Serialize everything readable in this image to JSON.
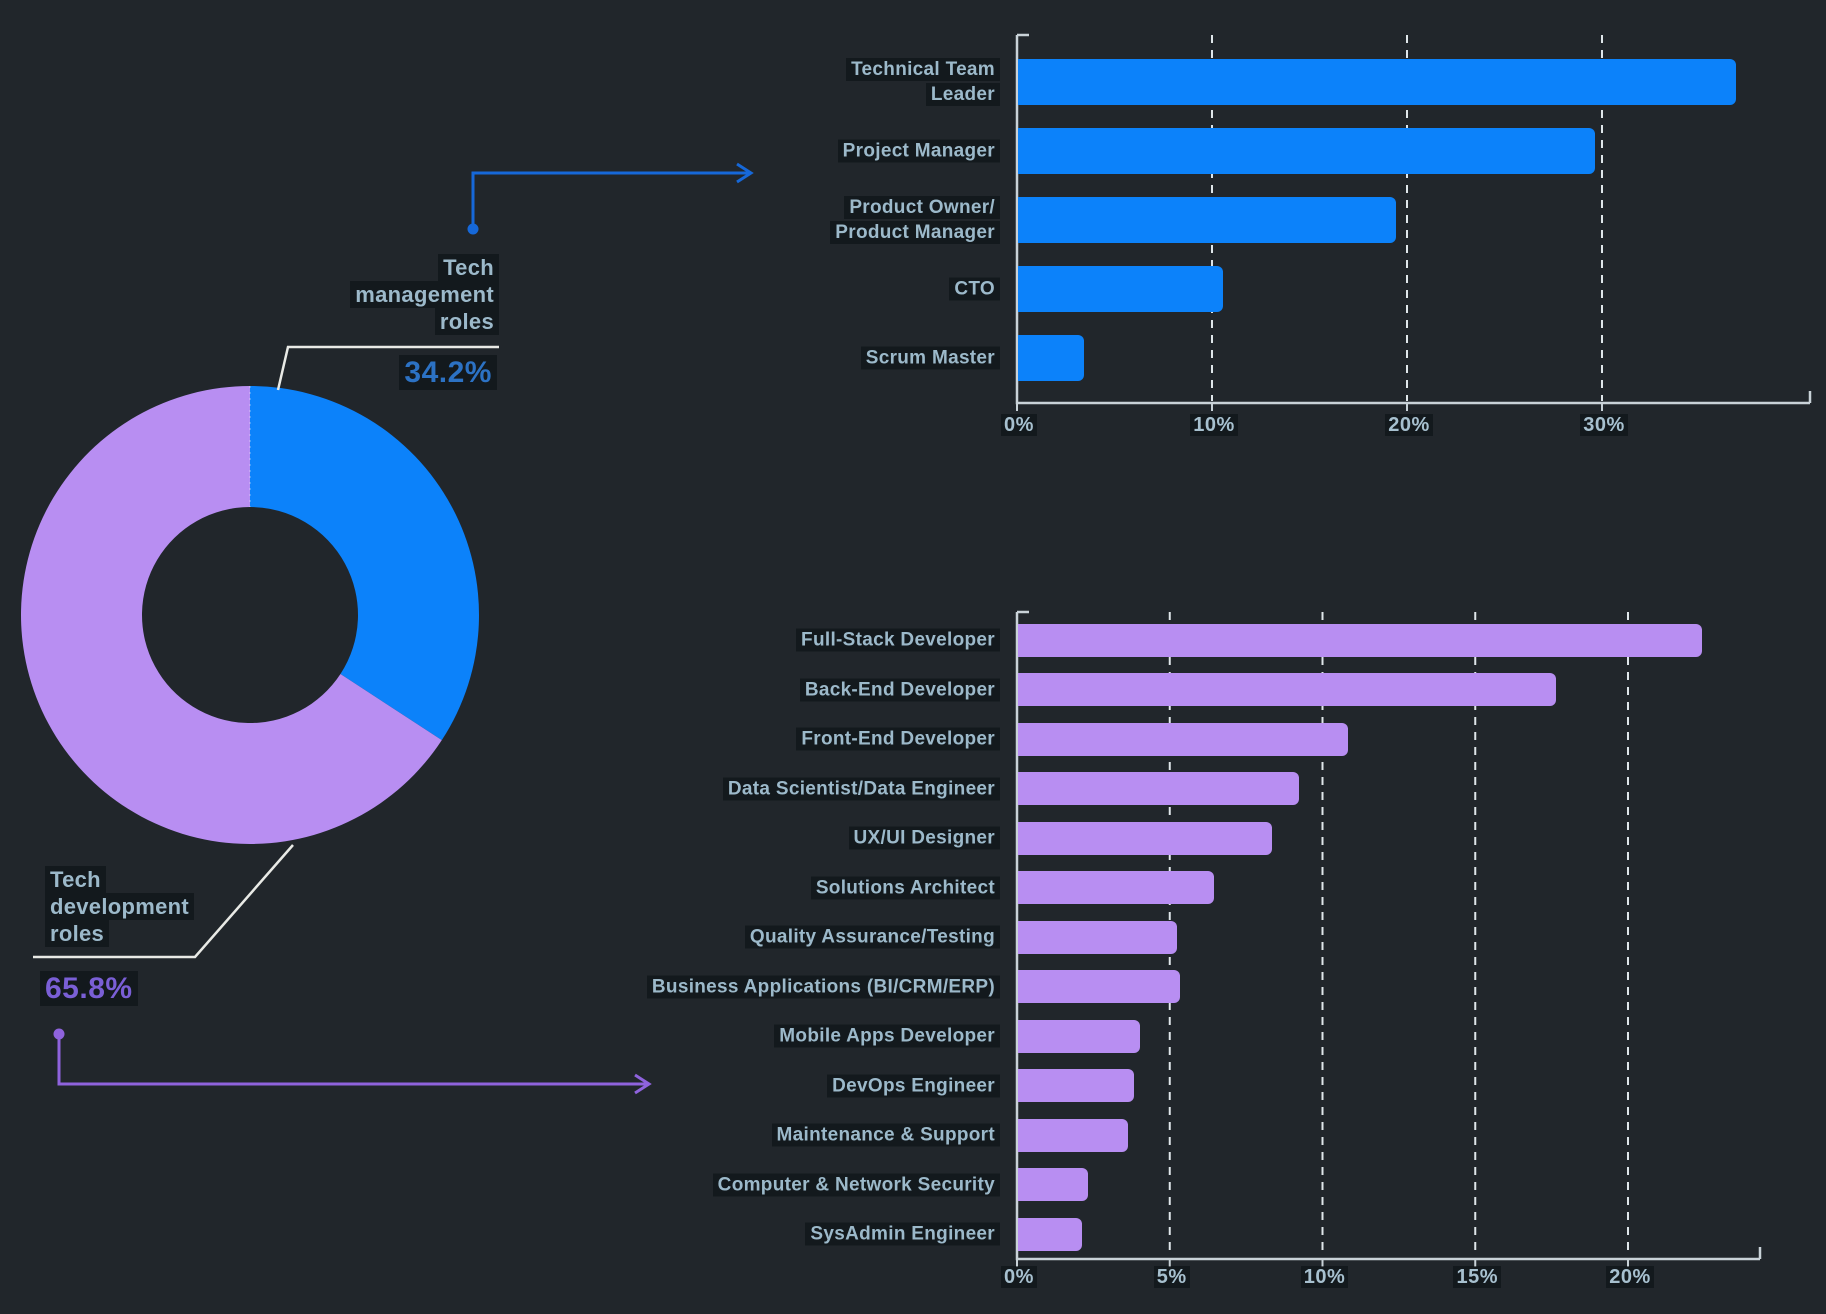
{
  "background_color": "#21262b",
  "colors": {
    "bar_blue": "#0c82fa",
    "bar_purple": "#b88ef2",
    "pct_blue_text": "#2c72c4",
    "pct_purple_text": "#7a5fd6",
    "label_text": "#9cb9ca",
    "tick_text": "#a7c0cf",
    "gridline": "#dfe6ea",
    "axis": "#c9d2d8",
    "connector_white": "#e9eae6",
    "connector_blue": "#1668d9",
    "connector_purple": "#8f63dd"
  },
  "chart_data": [
    {
      "id": "roles-donut",
      "type": "pie",
      "subtype": "donut",
      "categories": [
        "Tech\nmanagement\nroles",
        "Tech\ndevelopment\nroles"
      ],
      "values": [
        34.2,
        65.8
      ],
      "value_labels": [
        "34.2%",
        "65.8%"
      ],
      "colors": [
        "#0c82fa",
        "#b88ef2"
      ],
      "start_angle": "top",
      "direction": "clockwise"
    },
    {
      "id": "management-roles-bar",
      "type": "bar",
      "orientation": "horizontal",
      "categories": [
        "Technical Team\nLeader",
        "Project Manager",
        "Product Owner/\nProduct Manager",
        "CTO",
        "Scrum Master"
      ],
      "values": [
        36.8,
        29.6,
        19.4,
        10.5,
        3.4
      ],
      "bar_color": "#0c82fa",
      "xticks": [
        "0%",
        "10%",
        "20%",
        "30%"
      ],
      "xtick_values": [
        0,
        10,
        20,
        30
      ],
      "xlim": [
        0,
        40.7
      ],
      "grid": "dashed-vertical"
    },
    {
      "id": "development-roles-bar",
      "type": "bar",
      "orientation": "horizontal",
      "categories": [
        "Full-Stack Developer",
        "Back-End Developer",
        "Front-End Developer",
        "Data Scientist/Data Engineer",
        "UX/UI Designer",
        "Solutions Architect",
        "Quality Assurance/Testing",
        "Business Applications (BI/CRM/ERP)",
        "Mobile Apps Developer",
        "DevOps Engineer",
        "Maintenance & Support",
        "Computer & Network Security",
        "SysAdmin Engineer"
      ],
      "values": [
        22.4,
        17.6,
        10.8,
        9.2,
        8.3,
        6.4,
        5.2,
        5.3,
        4.0,
        3.8,
        3.6,
        2.3,
        2.1
      ],
      "bar_color": "#b88ef2",
      "xticks": [
        "0%",
        "5%",
        "10%",
        "15%",
        "20%"
      ],
      "xtick_values": [
        0,
        5,
        10,
        15,
        20
      ],
      "xlim": [
        0,
        24.4
      ],
      "grid": "dashed-vertical"
    }
  ]
}
